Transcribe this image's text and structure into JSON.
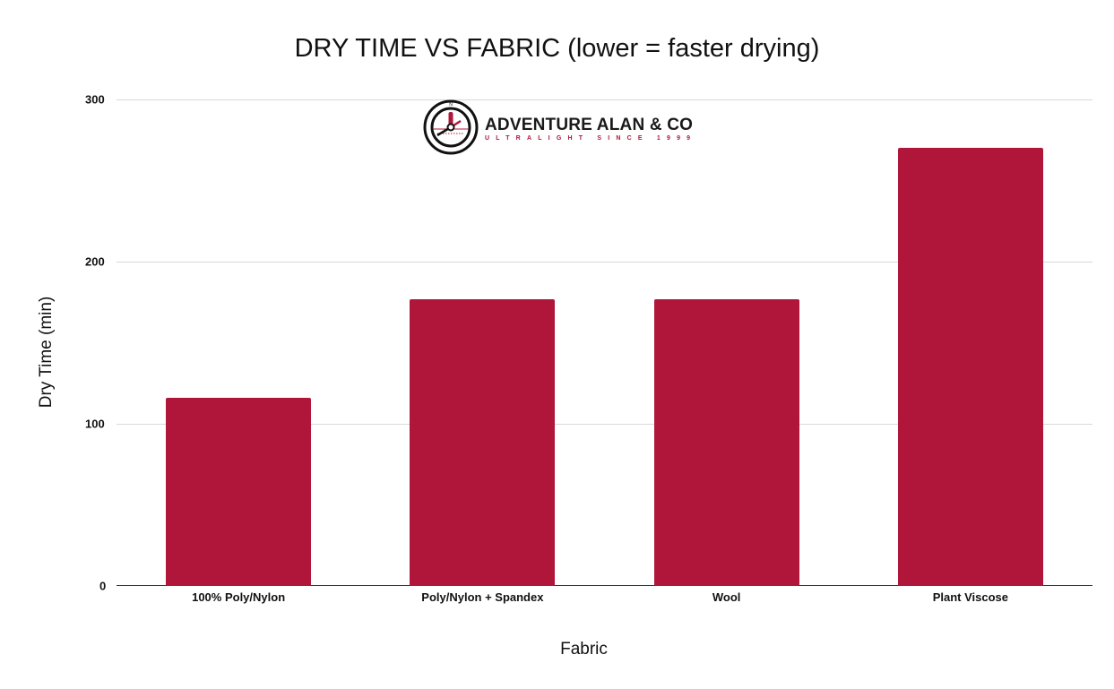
{
  "chart_data": {
    "type": "bar",
    "title": "DRY TIME VS FABRIC (lower = faster drying)",
    "xlabel": "Fabric",
    "ylabel": "Dry Time (min)",
    "categories": [
      "100% Poly/Nylon",
      "Poly/Nylon + Spandex",
      "Wool",
      "Plant Viscose"
    ],
    "values": [
      116,
      177,
      177,
      270
    ],
    "ylim": [
      0,
      300
    ],
    "yticks": [
      "0",
      "100",
      "200",
      "300"
    ],
    "grid": true,
    "legend": "none",
    "bar_color": "#b0153a"
  },
  "logo": {
    "name": "ADVENTURE ALAN & CO",
    "tagline": "ULTRALIGHT SINCE 1999",
    "icon": "compass-clock-icon"
  }
}
